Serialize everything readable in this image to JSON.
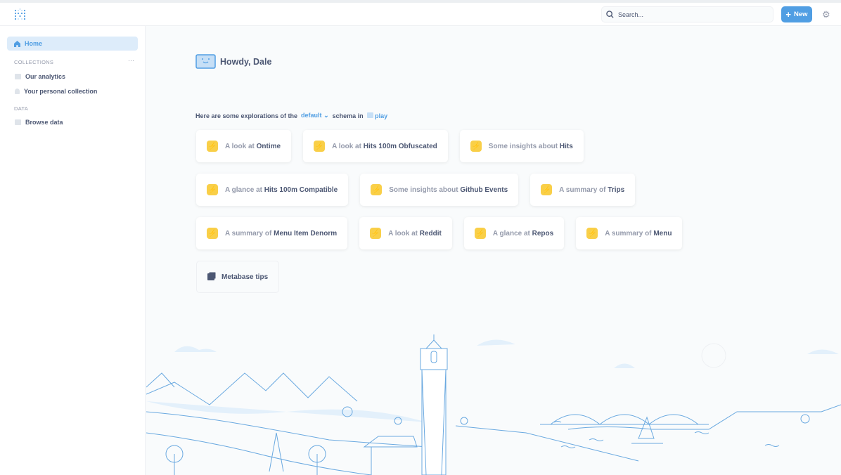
{
  "header": {
    "search_placeholder": "Search...",
    "new_label": "New"
  },
  "sidebar": {
    "home": "Home",
    "collections_heading": "COLLECTIONS",
    "collections": [
      {
        "label": "Our analytics",
        "icon": "folder-icon"
      },
      {
        "label": "Your personal collection",
        "icon": "person-icon"
      }
    ],
    "data_heading": "DATA",
    "data_items": [
      {
        "label": "Browse data",
        "icon": "database-icon"
      }
    ]
  },
  "main": {
    "greeting": "Howdy, Dale",
    "explore": {
      "prefix": "Here are some explorations of the",
      "schema": "default",
      "middle": "schema in",
      "database": "play"
    },
    "cards": [
      {
        "prefix": "A look at",
        "name": "Ontime"
      },
      {
        "prefix": "A look at",
        "name": "Hits 100m Obfuscated"
      },
      {
        "prefix": "Some insights about",
        "name": "Hits"
      },
      {
        "prefix": "A glance at",
        "name": "Hits 100m Compatible"
      },
      {
        "prefix": "Some insights about",
        "name": "Github Events"
      },
      {
        "prefix": "A summary of",
        "name": "Trips"
      },
      {
        "prefix": "A summary of",
        "name": "Menu Item Denorm"
      },
      {
        "prefix": "A look at",
        "name": "Reddit"
      },
      {
        "prefix": "A glance at",
        "name": "Repos"
      },
      {
        "prefix": "A summary of",
        "name": "Menu"
      }
    ],
    "tips": "Metabase tips"
  },
  "colors": {
    "brand": "#509ee3",
    "bolt": "#f9cf48"
  }
}
